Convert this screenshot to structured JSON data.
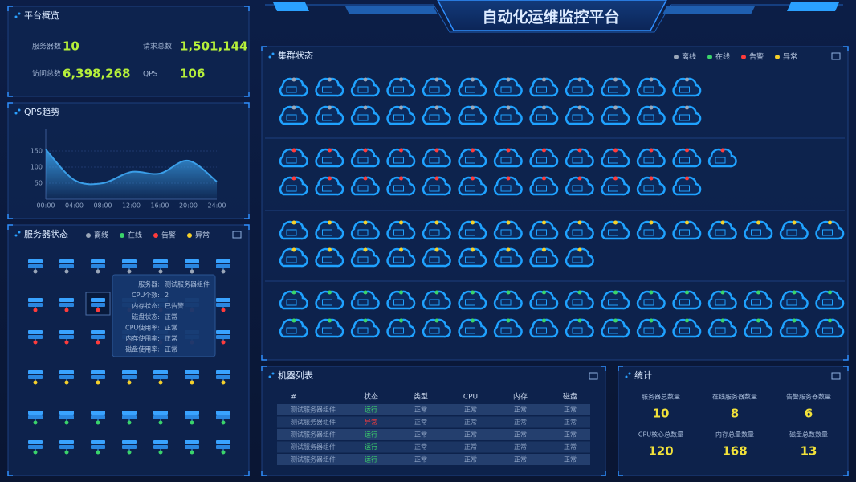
{
  "header": {
    "title": "自动化运维监控平台"
  },
  "legend": [
    {
      "label": "离线",
      "color": "#9aa6b8"
    },
    {
      "label": "在线",
      "color": "#3ad46a"
    },
    {
      "label": "告警",
      "color": "#ff3b3b"
    },
    {
      "label": "异常",
      "color": "#f5d02a"
    }
  ],
  "overview": {
    "title": "平台概览",
    "items": [
      {
        "label": "服务器数",
        "value": "10"
      },
      {
        "label": "请求总数",
        "value": "1,501,144"
      },
      {
        "label": "访问总数",
        "value": "6,398,268"
      },
      {
        "label": "QPS",
        "value": "106"
      }
    ]
  },
  "qps": {
    "title": "QPS趋势",
    "x": [
      "00:00",
      "04:00",
      "08:00",
      "12:00",
      "16:00",
      "20:00",
      "24:00"
    ],
    "values": [
      155,
      60,
      50,
      85,
      80,
      120,
      55
    ],
    "ylim": [
      0,
      200
    ],
    "yticks": [
      50,
      100,
      150
    ],
    "color": "#3a9ee8"
  },
  "servers": {
    "title": "服务器状态",
    "tooltip": [
      {
        "label": "服务器:",
        "value": "测试服务器组件"
      },
      {
        "label": "CPU个数:",
        "value": "2"
      },
      {
        "label": "内存状态:",
        "value": "已告警"
      },
      {
        "label": "磁盘状态:",
        "value": "正常"
      },
      {
        "label": "CPU使用率:",
        "value": "正常"
      },
      {
        "label": "内存使用率:",
        "value": "正常"
      },
      {
        "label": "磁盘使用率:",
        "value": "正常"
      }
    ]
  },
  "cluster": {
    "title": "集群状态"
  },
  "table": {
    "title": "机器列表",
    "headers": [
      "#",
      "状态",
      "类型",
      "CPU",
      "内存",
      "磁盘"
    ],
    "rows": [
      {
        "cells": [
          "测试服务器组件",
          "运行",
          "正常",
          "正常",
          "正常",
          "正常"
        ],
        "status_color": "#3ad46a"
      },
      {
        "cells": [
          "测试服务器组件",
          "异常",
          "正常",
          "正常",
          "正常",
          "正常"
        ],
        "status_color": "#ff3b3b"
      },
      {
        "cells": [
          "测试服务器组件",
          "运行",
          "正常",
          "正常",
          "正常",
          "正常"
        ],
        "status_color": "#3ad46a"
      },
      {
        "cells": [
          "测试服务器组件",
          "运行",
          "正常",
          "正常",
          "正常",
          "正常"
        ],
        "status_color": "#3ad46a"
      },
      {
        "cells": [
          "测试服务器组件",
          "运行",
          "正常",
          "正常",
          "正常",
          "正常"
        ],
        "status_color": "#3ad46a"
      }
    ]
  },
  "stats": {
    "title": "统计",
    "items": [
      {
        "label": "服务器总数量",
        "value": "10"
      },
      {
        "label": "在线服务器数量",
        "value": "8"
      },
      {
        "label": "告警服务器数量",
        "value": "6"
      },
      {
        "label": "CPU核心总数量",
        "value": "120"
      },
      {
        "label": "内存总量数量",
        "value": "168"
      },
      {
        "label": "磁盘总数数量",
        "value": "13"
      }
    ]
  }
}
